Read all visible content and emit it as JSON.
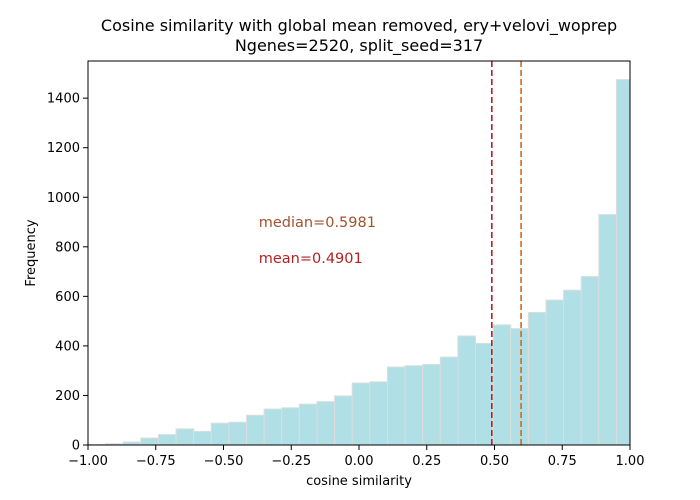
{
  "chart_data": {
    "type": "histogram",
    "title": "Cosine similarity with global mean removed, ery+velovi_woprep",
    "subtitle": "Ngenes=2520, split_seed=317",
    "xlabel": "cosine similarity",
    "ylabel": "Frequency",
    "xlim": [
      -1.0,
      1.0
    ],
    "ylim": [
      0,
      1550
    ],
    "xticks": [
      -1.0,
      -0.75,
      -0.5,
      -0.25,
      0.0,
      0.25,
      0.5,
      0.75,
      1.0
    ],
    "xtick_labels": [
      "−1.00",
      "−0.75",
      "−0.50",
      "−0.25",
      "0.00",
      "0.25",
      "0.50",
      "0.75",
      "1.00"
    ],
    "yticks": [
      0,
      200,
      400,
      600,
      800,
      1000,
      1200,
      1400
    ],
    "ytick_labels": [
      "0",
      "200",
      "400",
      "600",
      "800",
      "1000",
      "1200",
      "1400"
    ],
    "bin_edges": [
      -1.0,
      -0.935,
      -0.87,
      -0.805,
      -0.74,
      -0.675,
      -0.61,
      -0.545,
      -0.48,
      -0.415,
      -0.35,
      -0.285,
      -0.22,
      -0.155,
      -0.09,
      -0.025,
      0.04,
      0.105,
      0.17,
      0.235,
      0.3,
      0.365,
      0.43,
      0.495,
      0.56,
      0.625,
      0.69,
      0.755,
      0.82,
      0.885,
      0.95,
      1.0
    ],
    "counts": [
      2,
      5,
      12,
      28,
      42,
      65,
      55,
      88,
      92,
      120,
      145,
      150,
      165,
      175,
      198,
      250,
      255,
      315,
      320,
      325,
      355,
      440,
      410,
      485,
      470,
      535,
      585,
      625,
      680,
      930,
      1475
    ],
    "bar_color": "#b0dfe5",
    "bar_edge_color": "#dddddd",
    "lines": [
      {
        "label": "mean",
        "x": 0.4901,
        "color": "#b22222"
      },
      {
        "label": "median",
        "x": 0.5981,
        "color": "#d2691e"
      }
    ],
    "annotations": [
      {
        "text": "median=0.5981",
        "x": -0.37,
        "y": 880,
        "color": "#a0522d"
      },
      {
        "text": "mean=0.4901",
        "x": -0.37,
        "y": 735,
        "color": "#b22222"
      }
    ]
  }
}
